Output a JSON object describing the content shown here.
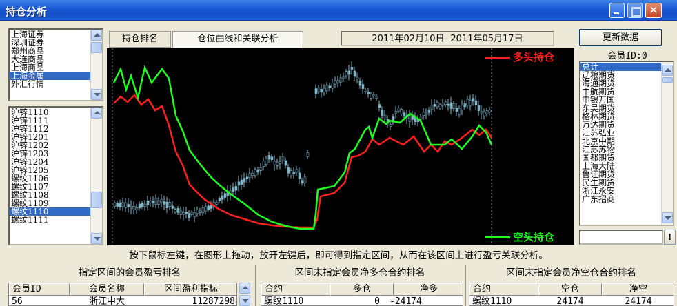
{
  "window": {
    "title": "持仓分析",
    "close_glyph": "✕"
  },
  "markets": {
    "items": [
      "上海证券",
      "深圳证券",
      "郑州商品",
      "大连商品",
      "上海商品",
      "上海金属",
      "外汇行情"
    ],
    "selected_index": 5
  },
  "contracts": {
    "items": [
      "沪锌1110",
      "沪锌1111",
      "沪锌1112",
      "沪锌1201",
      "沪锌1202",
      "沪锌1203",
      "沪锌1204",
      "沪锌1205",
      "螺纹1106",
      "螺纹1107",
      "螺纹1108",
      "螺纹1109",
      "螺纹1110",
      "螺纹1111"
    ],
    "selected_index": 12
  },
  "tabs": [
    "持仓排名",
    "仓位曲线和关联分析"
  ],
  "active_tab": 1,
  "date_range": "2011年02月10日- 2011年05月17日",
  "update_button": "更新数据",
  "member_id_label": "会员ID:0",
  "members": {
    "items": [
      "总计",
      "辽粮期货",
      "海通期货",
      "中航期货",
      "申银万国",
      "东吴期货",
      "格林期货",
      "万达期货",
      "江苏弘业",
      "北京中期",
      "江苏苏物",
      "国都期货",
      "上海大陆",
      "鲁证期货",
      "民生期货",
      "浙江永安",
      "广东招商"
    ],
    "selected_index": 0
  },
  "legend": {
    "long": "多头持仓",
    "short": "空头持仓"
  },
  "colors": {
    "long": "#ff2020",
    "short": "#20ff20",
    "candle": "#7fb4c8",
    "chart_bg": "#000000",
    "selection": "#316ac5"
  },
  "extra_button": "!",
  "hint": "按下鼠标左键，在图形上拖动，放开左键后，即可得到指定区间，从而在该区间上进行盈亏关联分析。",
  "sections": {
    "profit": {
      "title": "指定区间的会员盈亏排名",
      "headers": [
        "会员ID",
        "会员名称",
        "区间盈利指标"
      ],
      "rows": [
        [
          "56",
          "浙江中大",
          "11287298"
        ]
      ]
    },
    "net_long": {
      "title": "区间末指定会员净多仓合约排名",
      "headers": [
        "合约",
        "多仓",
        "净多"
      ],
      "rows": [
        [
          "螺纹1110",
          "0",
          "-24174"
        ]
      ]
    },
    "net_short": {
      "title": "区间末指定会员净空仓合约排名",
      "headers": [
        "合约",
        "空仓",
        "净空"
      ],
      "rows": [
        [
          "螺纹1110",
          "24174",
          "24174"
        ]
      ]
    }
  }
}
